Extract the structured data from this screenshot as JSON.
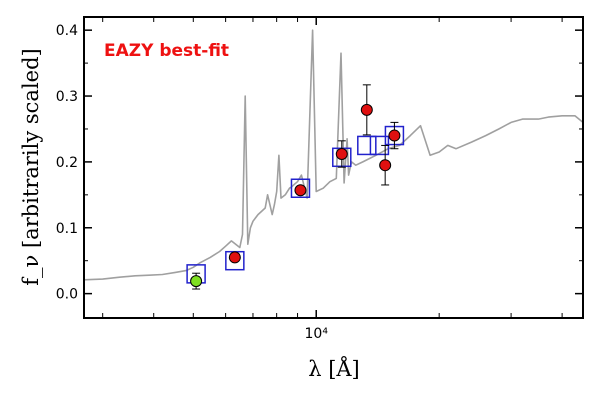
{
  "chart_data": {
    "type": "scatter",
    "annotation": "EAZY best-fit",
    "xlabel": "λ [Å]",
    "ylabel": "f_ν [arbitrarily scaled]",
    "x_scale": "log",
    "xlim": [
      2700,
      45000
    ],
    "ylim": [
      -0.037,
      0.42
    ],
    "x_ticks": [
      {
        "value": 10000,
        "label": "10⁴"
      }
    ],
    "y_ticks": [
      {
        "value": 0.0,
        "label": "0.0"
      },
      {
        "value": 0.1,
        "label": "0.1"
      },
      {
        "value": 0.2,
        "label": "0.2"
      },
      {
        "value": 0.3,
        "label": "0.3"
      },
      {
        "value": 0.4,
        "label": "0.4"
      }
    ],
    "grid": false,
    "colors": {
      "template": "#a0a0a0",
      "model_box": "#2222cc",
      "observed_point": "#e01010",
      "highlight_point": "#7fe020",
      "marker_edge": "#000000",
      "annotation": "#ee1111"
    },
    "series": [
      {
        "kind": "template",
        "x": [
          2700,
          3000,
          3300,
          3600,
          3900,
          4200,
          4500,
          4800,
          5000,
          5200,
          5500,
          5800,
          6000,
          6200,
          6500,
          6600,
          6700,
          6800,
          6900,
          7000,
          7200,
          7500,
          7600,
          7800,
          7900,
          8000,
          8100,
          8200,
          8400,
          8600,
          8700,
          8800,
          9000,
          9200,
          9500,
          9800,
          10000,
          10400,
          10800,
          11200,
          11500,
          11700,
          11900,
          12000,
          12100,
          12200,
          12500,
          13000,
          14000,
          15000,
          16000,
          17000,
          18000,
          19000,
          20000,
          21000,
          22000,
          24000,
          26000,
          28000,
          30000,
          32000,
          33000,
          35000,
          37000,
          40000,
          41000,
          43000,
          45000
        ],
        "y": [
          0.021,
          0.022,
          0.025,
          0.027,
          0.028,
          0.029,
          0.032,
          0.035,
          0.04,
          0.047,
          0.055,
          0.064,
          0.072,
          0.08,
          0.07,
          0.09,
          0.3,
          0.075,
          0.1,
          0.11,
          0.12,
          0.13,
          0.15,
          0.12,
          0.135,
          0.155,
          0.21,
          0.145,
          0.15,
          0.16,
          0.162,
          0.165,
          0.17,
          0.18,
          0.145,
          0.4,
          0.155,
          0.16,
          0.17,
          0.175,
          0.365,
          0.168,
          0.235,
          0.18,
          0.19,
          0.2,
          0.195,
          0.2,
          0.21,
          0.22,
          0.225,
          0.24,
          0.255,
          0.21,
          0.215,
          0.225,
          0.22,
          0.23,
          0.24,
          0.25,
          0.26,
          0.265,
          0.265,
          0.265,
          0.268,
          0.27,
          0.27,
          0.27,
          0.26
        ]
      },
      {
        "kind": "model-photometry",
        "x": [
          5080,
          6320,
          9150,
          11550,
          13300,
          14280,
          15540
        ],
        "y": [
          0.03,
          0.05,
          0.16,
          0.207,
          0.225,
          0.225,
          0.24
        ]
      },
      {
        "kind": "observed-photometry",
        "x": [
          6320,
          9150,
          11550,
          13300,
          14750,
          15540
        ],
        "y": [
          0.055,
          0.157,
          0.212,
          0.279,
          0.195,
          0.24
        ],
        "yerr": [
          0.003,
          0.004,
          0.02,
          0.038,
          0.03,
          0.02
        ]
      },
      {
        "kind": "highlighted-photometry",
        "x": [
          5080
        ],
        "y": [
          0.019
        ],
        "yerr": [
          0.012
        ]
      }
    ]
  }
}
